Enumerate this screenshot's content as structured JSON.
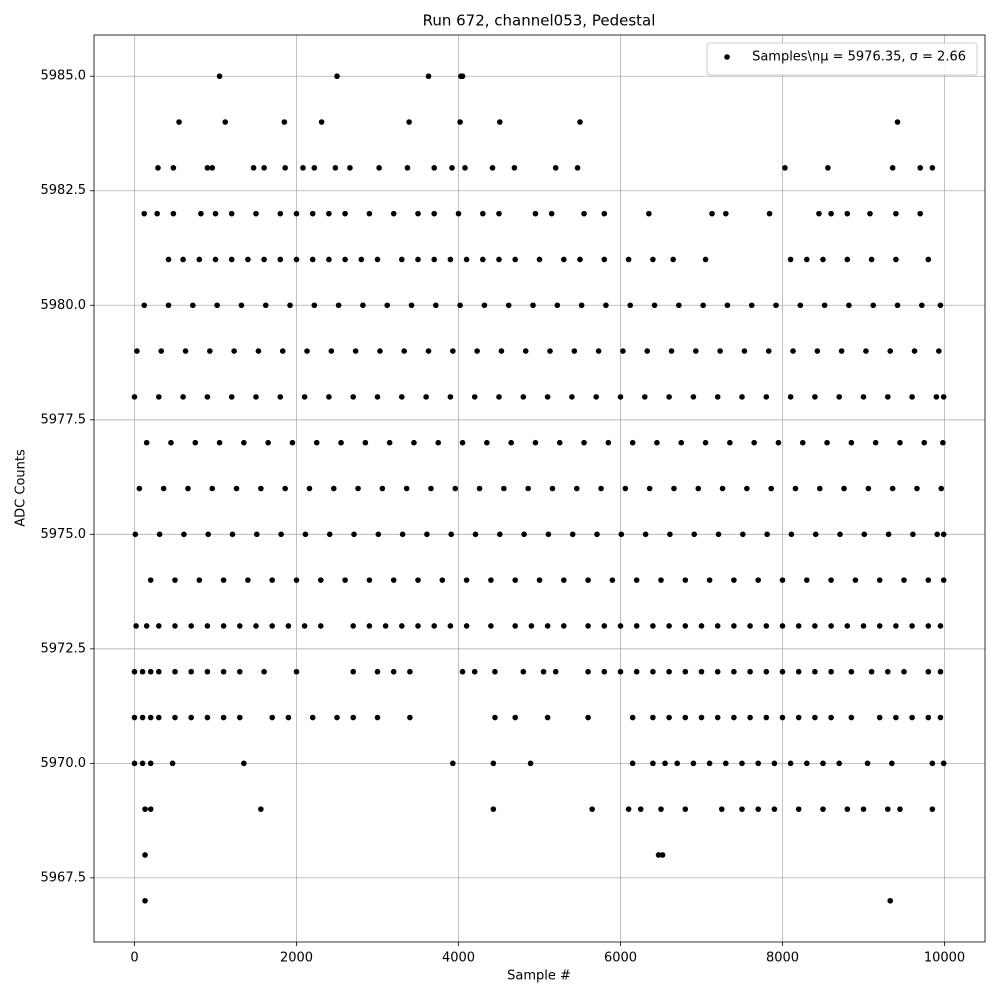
{
  "chart_data": {
    "type": "scatter",
    "title": "Run 672, channel053, Pedestal",
    "x_label": "Sample #",
    "y_label": "ADC Counts",
    "xlim": [
      -500,
      10500
    ],
    "ylim": [
      5966.1,
      5985.9
    ],
    "xticks": [
      0,
      2000,
      4000,
      6000,
      8000,
      10000
    ],
    "yticks": [
      5967.5,
      {
        "value": 5970,
        "label": "5970.0"
      },
      5972.5,
      {
        "value": 5975,
        "label": "5975.0"
      },
      5977.5,
      {
        "value": 5980,
        "label": "5980.0"
      },
      5982.5,
      {
        "value": 5985,
        "label": "5985.0"
      }
    ],
    "grid": true,
    "legend": "upper right",
    "series": [
      {
        "name": "Samples\\nμ = 5976.35, σ = 2.66",
        "color": "#000000",
        "x": [
          1050,
          2500,
          3630,
          4030,
          4050,
          550,
          1120,
          1850,
          2310,
          3390,
          4020,
          4510,
          5500,
          9420,
          290,
          480,
          900,
          960,
          1470,
          1600,
          1860,
          2080,
          2220,
          2480,
          2660,
          3020,
          3370,
          3700,
          3920,
          4080,
          4420,
          4690,
          5200,
          5470,
          8030,
          8560,
          9360,
          9700,
          9850,
          120,
          280,
          480,
          820,
          1000,
          1200,
          1500,
          1800,
          2000,
          2200,
          2400,
          2600,
          2900,
          3200,
          3500,
          3700,
          4000,
          4300,
          4500,
          4950,
          5150,
          5550,
          5800,
          6350,
          7130,
          7300,
          7840,
          8450,
          8600,
          8800,
          9080,
          9400,
          9700,
          420,
          600,
          800,
          1000,
          1200,
          1400,
          1600,
          1800,
          2000,
          2200,
          2400,
          2600,
          2800,
          3000,
          3300,
          3500,
          3700,
          3900,
          4100,
          4300,
          4500,
          4700,
          5000,
          5300,
          5500,
          5800,
          6100,
          6400,
          6650,
          7050,
          8100,
          8300,
          8500,
          8800,
          9100,
          9400,
          9800,
          120,
          420,
          720,
          1020,
          1320,
          1620,
          1920,
          2220,
          2520,
          2820,
          3120,
          3420,
          3720,
          4020,
          4320,
          4620,
          4920,
          5220,
          5520,
          5820,
          6120,
          6420,
          6720,
          7020,
          7320,
          7620,
          7920,
          8220,
          8520,
          8820,
          9120,
          9420,
          9720,
          9950,
          30,
          330,
          630,
          930,
          1230,
          1530,
          1830,
          2130,
          2430,
          2730,
          3030,
          3330,
          3630,
          3930,
          4230,
          4530,
          4830,
          5130,
          5430,
          5730,
          6030,
          6330,
          6630,
          6930,
          7230,
          7530,
          7830,
          8130,
          8430,
          8730,
          9030,
          9330,
          9630,
          9930,
          0,
          300,
          600,
          900,
          1200,
          1500,
          1800,
          2100,
          2400,
          2700,
          3000,
          3300,
          3600,
          3900,
          4200,
          4500,
          4800,
          5100,
          5400,
          5700,
          6000,
          6300,
          6600,
          6900,
          7200,
          7500,
          7800,
          8100,
          8400,
          8700,
          9000,
          9300,
          9600,
          9900,
          9990,
          150,
          450,
          750,
          1050,
          1350,
          1650,
          1950,
          2250,
          2550,
          2850,
          3150,
          3450,
          3750,
          4050,
          4350,
          4650,
          4950,
          5250,
          5550,
          5850,
          6150,
          6450,
          6750,
          7050,
          7350,
          7650,
          7950,
          8250,
          8550,
          8850,
          9150,
          9450,
          9750,
          9980,
          60,
          360,
          660,
          960,
          1260,
          1560,
          1860,
          2160,
          2460,
          2760,
          3060,
          3360,
          3660,
          3960,
          4260,
          4560,
          4860,
          5160,
          5460,
          5760,
          6060,
          6360,
          6660,
          6960,
          7260,
          7560,
          7860,
          8160,
          8460,
          8760,
          9060,
          9360,
          9660,
          9960,
          10,
          310,
          610,
          910,
          1210,
          1510,
          1810,
          2110,
          2410,
          2710,
          3010,
          3310,
          3610,
          3910,
          4210,
          4510,
          4810,
          5110,
          5410,
          5710,
          6010,
          6310,
          6610,
          6910,
          7210,
          7510,
          7810,
          8110,
          8410,
          8710,
          9010,
          9310,
          9610,
          9910,
          9990,
          200,
          500,
          800,
          1100,
          1400,
          1700,
          2000,
          2300,
          2600,
          2900,
          3200,
          3500,
          3800,
          4100,
          4400,
          4700,
          5000,
          5300,
          5600,
          5900,
          6200,
          6500,
          6800,
          7100,
          7400,
          7700,
          8000,
          8300,
          8600,
          8900,
          9200,
          9500,
          9800,
          9990,
          20,
          150,
          300,
          500,
          700,
          900,
          1100,
          1300,
          1500,
          1700,
          1900,
          2100,
          2300,
          2700,
          2900,
          3100,
          3300,
          3500,
          3700,
          3900,
          4100,
          4400,
          4700,
          4900,
          5100,
          5300,
          5600,
          5800,
          6000,
          6200,
          6400,
          6600,
          6800,
          7000,
          7200,
          7400,
          7600,
          7800,
          8000,
          8200,
          8400,
          8600,
          8800,
          9000,
          9200,
          9400,
          9600,
          9800,
          9950,
          0,
          100,
          200,
          300,
          500,
          700,
          900,
          1100,
          1300,
          1600,
          2000,
          2700,
          3000,
          3200,
          3400,
          4050,
          4200,
          4450,
          4800,
          5050,
          5200,
          5600,
          5800,
          6000,
          6200,
          6400,
          6600,
          6800,
          7000,
          7200,
          7400,
          7600,
          7800,
          8000,
          8200,
          8400,
          8600,
          8850,
          9100,
          9300,
          9500,
          9800,
          9950,
          0,
          100,
          200,
          300,
          500,
          700,
          900,
          1100,
          1300,
          1700,
          1900,
          2200,
          2500,
          2700,
          3000,
          3400,
          4450,
          4700,
          5100,
          5600,
          6150,
          6400,
          6600,
          6800,
          7000,
          7200,
          7400,
          7600,
          7800,
          8000,
          8200,
          8400,
          8600,
          8850,
          9200,
          9400,
          9600,
          9800,
          9950,
          0,
          100,
          200,
          470,
          1350,
          3930,
          4430,
          4890,
          6150,
          6400,
          6550,
          6700,
          6900,
          7100,
          7300,
          7500,
          7700,
          7900,
          8100,
          8300,
          8500,
          8700,
          9050,
          9350,
          9850,
          9990,
          130,
          200,
          1560,
          4430,
          5650,
          6100,
          6250,
          6500,
          6800,
          7250,
          7500,
          7700,
          7900,
          8200,
          8500,
          8800,
          9000,
          9300,
          9450,
          9850,
          130,
          6470,
          6520,
          130,
          9330
        ],
        "values": [
          5985,
          5985,
          5985,
          5985,
          5985,
          5984,
          5984,
          5984,
          5984,
          5984,
          5984,
          5984,
          5984,
          5984,
          5983,
          5983,
          5983,
          5983,
          5983,
          5983,
          5983,
          5983,
          5983,
          5983,
          5983,
          5983,
          5983,
          5983,
          5983,
          5983,
          5983,
          5983,
          5983,
          5983,
          5983,
          5983,
          5983,
          5983,
          5983,
          5982,
          5982,
          5982,
          5982,
          5982,
          5982,
          5982,
          5982,
          5982,
          5982,
          5982,
          5982,
          5982,
          5982,
          5982,
          5982,
          5982,
          5982,
          5982,
          5982,
          5982,
          5982,
          5982,
          5982,
          5982,
          5982,
          5982,
          5982,
          5982,
          5982,
          5982,
          5982,
          5982,
          5981,
          5981,
          5981,
          5981,
          5981,
          5981,
          5981,
          5981,
          5981,
          5981,
          5981,
          5981,
          5981,
          5981,
          5981,
          5981,
          5981,
          5981,
          5981,
          5981,
          5981,
          5981,
          5981,
          5981,
          5981,
          5981,
          5981,
          5981,
          5981,
          5981,
          5981,
          5981,
          5981,
          5981,
          5981,
          5981,
          5981,
          5980,
          5980,
          5980,
          5980,
          5980,
          5980,
          5980,
          5980,
          5980,
          5980,
          5980,
          5980,
          5980,
          5980,
          5980,
          5980,
          5980,
          5980,
          5980,
          5980,
          5980,
          5980,
          5980,
          5980,
          5980,
          5980,
          5980,
          5980,
          5980,
          5980,
          5980,
          5980,
          5980,
          5980,
          5979,
          5979,
          5979,
          5979,
          5979,
          5979,
          5979,
          5979,
          5979,
          5979,
          5979,
          5979,
          5979,
          5979,
          5979,
          5979,
          5979,
          5979,
          5979,
          5979,
          5979,
          5979,
          5979,
          5979,
          5979,
          5979,
          5979,
          5979,
          5979,
          5979,
          5979,
          5979,
          5979,
          5979,
          5978,
          5978,
          5978,
          5978,
          5978,
          5978,
          5978,
          5978,
          5978,
          5978,
          5978,
          5978,
          5978,
          5978,
          5978,
          5978,
          5978,
          5978,
          5978,
          5978,
          5978,
          5978,
          5978,
          5978,
          5978,
          5978,
          5978,
          5978,
          5978,
          5978,
          5978,
          5978,
          5978,
          5978,
          5978,
          5977,
          5977,
          5977,
          5977,
          5977,
          5977,
          5977,
          5977,
          5977,
          5977,
          5977,
          5977,
          5977,
          5977,
          5977,
          5977,
          5977,
          5977,
          5977,
          5977,
          5977,
          5977,
          5977,
          5977,
          5977,
          5977,
          5977,
          5977,
          5977,
          5977,
          5977,
          5977,
          5977,
          5977,
          5976,
          5976,
          5976,
          5976,
          5976,
          5976,
          5976,
          5976,
          5976,
          5976,
          5976,
          5976,
          5976,
          5976,
          5976,
          5976,
          5976,
          5976,
          5976,
          5976,
          5976,
          5976,
          5976,
          5976,
          5976,
          5976,
          5976,
          5976,
          5976,
          5976,
          5976,
          5976,
          5976,
          5976,
          5975,
          5975,
          5975,
          5975,
          5975,
          5975,
          5975,
          5975,
          5975,
          5975,
          5975,
          5975,
          5975,
          5975,
          5975,
          5975,
          5975,
          5975,
          5975,
          5975,
          5975,
          5975,
          5975,
          5975,
          5975,
          5975,
          5975,
          5975,
          5975,
          5975,
          5975,
          5975,
          5975,
          5975,
          5975,
          5974,
          5974,
          5974,
          5974,
          5974,
          5974,
          5974,
          5974,
          5974,
          5974,
          5974,
          5974,
          5974,
          5974,
          5974,
          5974,
          5974,
          5974,
          5974,
          5974,
          5974,
          5974,
          5974,
          5974,
          5974,
          5974,
          5974,
          5974,
          5974,
          5974,
          5974,
          5974,
          5974,
          5974,
          5973,
          5973,
          5973,
          5973,
          5973,
          5973,
          5973,
          5973,
          5973,
          5973,
          5973,
          5973,
          5973,
          5973,
          5973,
          5973,
          5973,
          5973,
          5973,
          5973,
          5973,
          5973,
          5973,
          5973,
          5973,
          5973,
          5973,
          5973,
          5973,
          5973,
          5973,
          5973,
          5973,
          5973,
          5973,
          5973,
          5973,
          5973,
          5973,
          5973,
          5973,
          5973,
          5973,
          5973,
          5973,
          5973,
          5973,
          5973,
          5973,
          5972,
          5972,
          5972,
          5972,
          5972,
          5972,
          5972,
          5972,
          5972,
          5972,
          5972,
          5972,
          5972,
          5972,
          5972,
          5972,
          5972,
          5972,
          5972,
          5972,
          5972,
          5972,
          5972,
          5972,
          5972,
          5972,
          5972,
          5972,
          5972,
          5972,
          5972,
          5972,
          5972,
          5972,
          5972,
          5972,
          5972,
          5972,
          5972,
          5972,
          5972,
          5972,
          5972,
          5971,
          5971,
          5971,
          5971,
          5971,
          5971,
          5971,
          5971,
          5971,
          5971,
          5971,
          5971,
          5971,
          5971,
          5971,
          5971,
          5971,
          5971,
          5971,
          5971,
          5971,
          5971,
          5971,
          5971,
          5971,
          5971,
          5971,
          5971,
          5971,
          5971,
          5971,
          5971,
          5971,
          5971,
          5971,
          5971,
          5971,
          5971,
          5971,
          5970,
          5970,
          5970,
          5970,
          5970,
          5970,
          5970,
          5970,
          5970,
          5970,
          5970,
          5970,
          5970,
          5970,
          5970,
          5970,
          5970,
          5970,
          5970,
          5970,
          5970,
          5970,
          5970,
          5970,
          5970,
          5970,
          5969,
          5969,
          5969,
          5969,
          5969,
          5969,
          5969,
          5969,
          5969,
          5969,
          5969,
          5969,
          5969,
          5969,
          5969,
          5969,
          5969,
          5969,
          5969,
          5969,
          5968,
          5968,
          5968,
          5967,
          5967
        ]
      }
    ]
  }
}
